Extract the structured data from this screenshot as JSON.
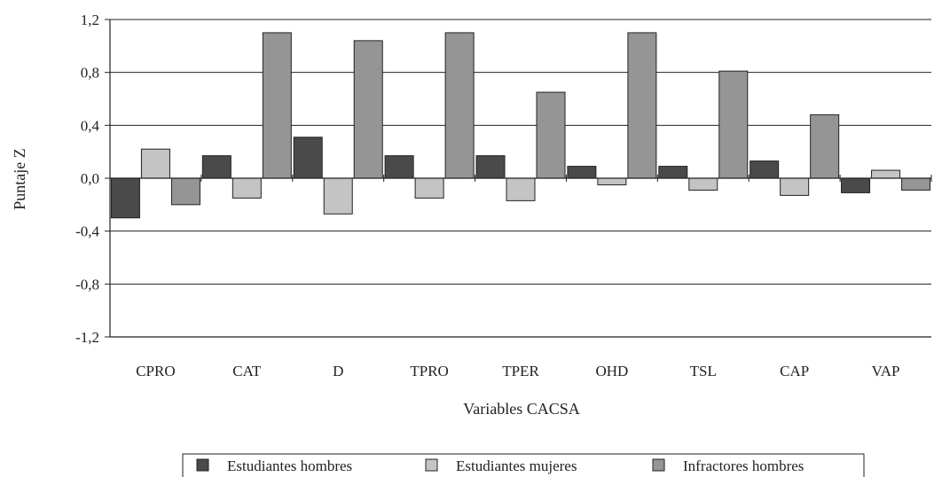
{
  "chart_data": {
    "type": "bar",
    "xlabel": "Variables CACSA",
    "ylabel": "Puntaje Z",
    "ylim": [
      -1.2,
      1.2
    ],
    "yticks": [
      "1,2",
      "0,8",
      "0,4",
      "0,0",
      "-0,4",
      "-0,8",
      "-1,2"
    ],
    "ytick_values": [
      1.2,
      0.8,
      0.4,
      0.0,
      -0.4,
      -0.8,
      -1.2
    ],
    "grid": true,
    "legend_position": "bottom",
    "categories": [
      "CPRO",
      "CAT",
      "D",
      "TPRO",
      "TPER",
      "OHD",
      "TSL",
      "CAP",
      "VAP"
    ],
    "series": [
      {
        "name": "Estudiantes hombres",
        "color": "#4a4a4a",
        "values": [
          -0.3,
          0.17,
          0.31,
          0.17,
          0.17,
          0.09,
          0.09,
          0.13,
          -0.11
        ]
      },
      {
        "name": "Estudiantes mujeres",
        "color": "#c4c4c4",
        "values": [
          0.22,
          -0.15,
          -0.27,
          -0.15,
          -0.17,
          -0.05,
          -0.09,
          -0.13,
          0.06
        ]
      },
      {
        "name": "Infractores hombres",
        "color": "#959595",
        "values": [
          -0.2,
          1.1,
          1.04,
          1.1,
          0.65,
          1.1,
          0.81,
          0.48,
          -0.09
        ]
      }
    ]
  }
}
